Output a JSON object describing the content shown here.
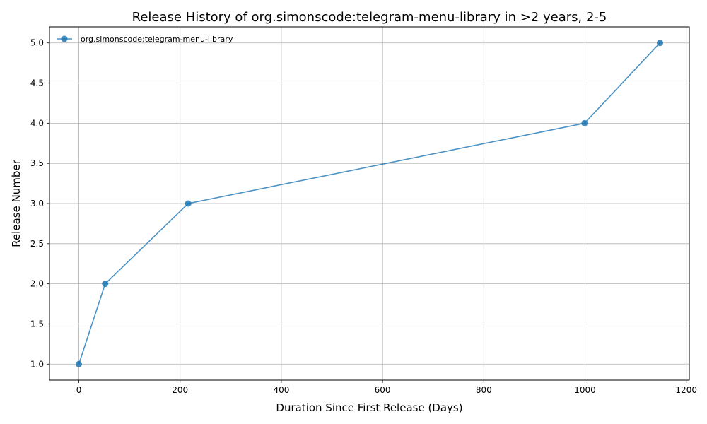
{
  "chart_data": {
    "type": "line",
    "title": "Release History of org.simonscode:telegram-menu-library in >2 years, 2-5",
    "xlabel": "Duration Since First Release (Days)",
    "ylabel": "Release Number",
    "xlim": [
      -58,
      1206
    ],
    "ylim": [
      0.8,
      5.2
    ],
    "xticks": [
      0,
      200,
      400,
      600,
      800,
      1000,
      1200
    ],
    "yticks": [
      1.0,
      1.5,
      2.0,
      2.5,
      3.0,
      3.5,
      4.0,
      4.5,
      5.0
    ],
    "xtick_labels": [
      "0",
      "200",
      "400",
      "600",
      "800",
      "1000",
      "1200"
    ],
    "ytick_labels": [
      "1.0",
      "1.5",
      "2.0",
      "2.5",
      "3.0",
      "3.5",
      "4.0",
      "4.5",
      "5.0"
    ],
    "grid": true,
    "legend_position": "top-left",
    "series": [
      {
        "name": "org.simonscode:telegram-menu-library",
        "color": "#1f77b4",
        "marker": "circle",
        "x": [
          0,
          52,
          216,
          999,
          1148
        ],
        "y": [
          1,
          2,
          3,
          4,
          5
        ]
      }
    ]
  }
}
